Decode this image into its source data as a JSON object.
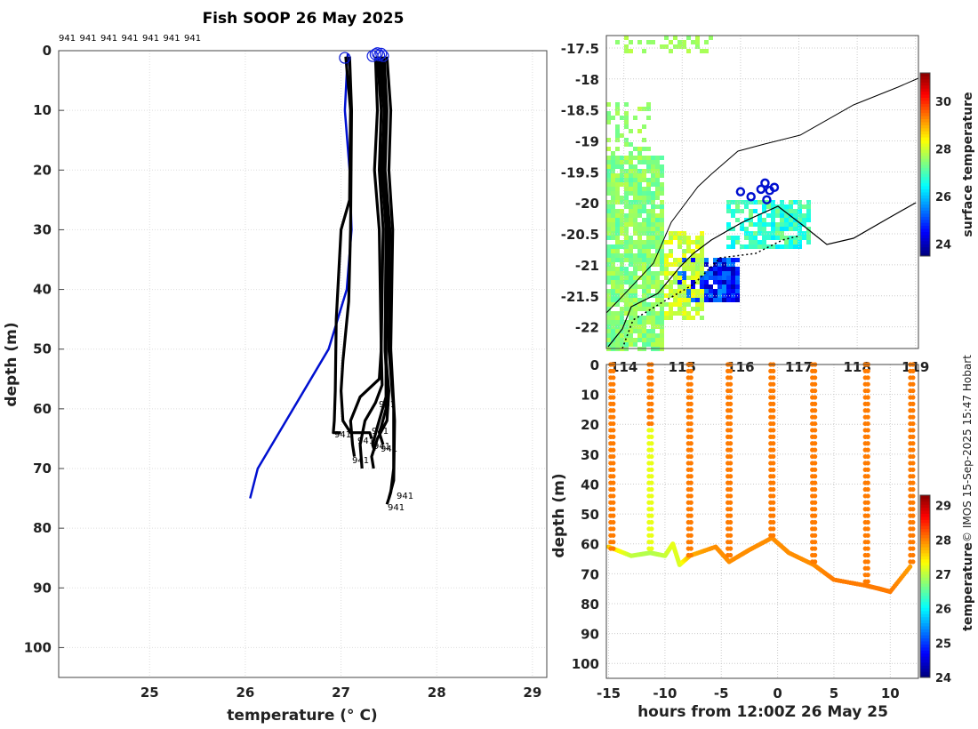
{
  "title": "Fish SOOP 26 May 2025",
  "credit": "© IMOS 15-Sep-2025 15:47 Hobart",
  "chart_data": [
    {
      "type": "line",
      "name": "profiles",
      "xlabel": "temperature (° C)",
      "ylabel": "depth (m)",
      "xlim": [
        24.05,
        29.15
      ],
      "ylim": [
        105,
        0
      ],
      "xticks": [
        "25",
        "26",
        "27",
        "28",
        "29"
      ],
      "yticks": [
        "0",
        "10",
        "20",
        "30",
        "40",
        "50",
        "60",
        "70",
        "80",
        "90",
        "100"
      ],
      "top_labels": [
        "941",
        "941",
        "941",
        "941",
        "941",
        "941",
        "941"
      ],
      "end_labels": [
        "941",
        "941",
        "941",
        "941",
        "941",
        "941",
        "941",
        "941",
        "941"
      ],
      "series": [
        {
          "name": "model",
          "color": "#0010d0",
          "x": [
            27.07,
            27.04,
            27.09,
            27.11,
            27.06,
            26.87,
            26.13,
            26.05
          ],
          "y": [
            0.5,
            10,
            20,
            30,
            40,
            50,
            70,
            75
          ]
        },
        {
          "name": "p1",
          "color": "#000000",
          "x": [
            27.05,
            27.1,
            27.09,
            27.0,
            26.95,
            26.94,
            26.93,
            26.92,
            26.95,
            27.0
          ],
          "y": [
            1,
            10,
            25,
            30,
            45,
            57,
            62,
            64,
            64,
            64
          ]
        },
        {
          "name": "p2",
          "color": "#000000",
          "x": [
            27.09,
            27.11,
            27.1,
            27.08,
            27.02,
            27.0,
            27.02,
            27.1,
            27.2,
            27.3,
            27.32
          ],
          "y": [
            1,
            10,
            30,
            42,
            52,
            57,
            62,
            64,
            64,
            64,
            65
          ]
        },
        {
          "name": "p3",
          "color": "#000000",
          "x": [
            27.36,
            27.38,
            27.35,
            27.4,
            27.42,
            27.4,
            27.2,
            27.1,
            27.12,
            27.14
          ],
          "y": [
            1,
            10,
            20,
            30,
            50,
            55,
            58,
            62,
            66,
            68
          ]
        },
        {
          "name": "p4",
          "color": "#000000",
          "x": [
            27.38,
            27.42,
            27.4,
            27.44,
            27.42,
            27.43,
            27.36,
            27.25,
            27.2,
            27.22
          ],
          "y": [
            1,
            10,
            20,
            30,
            50,
            56,
            59,
            62,
            66,
            70
          ]
        },
        {
          "name": "p5",
          "color": "#000000",
          "x": [
            27.4,
            27.45,
            27.43,
            27.47,
            27.46,
            27.48,
            27.47,
            27.42,
            27.4,
            27.44
          ],
          "y": [
            1,
            10,
            20,
            30,
            50,
            56,
            60,
            63,
            64,
            66
          ]
        },
        {
          "name": "p6",
          "color": "#000000",
          "x": [
            27.41,
            27.46,
            27.42,
            27.48,
            27.46,
            27.5,
            27.48,
            27.38,
            27.32,
            27.34
          ],
          "y": [
            1,
            10,
            20,
            30,
            50,
            57,
            62,
            65,
            68,
            70
          ]
        },
        {
          "name": "p7",
          "color": "#000000",
          "x": [
            27.45,
            27.48,
            27.46,
            27.51,
            27.5,
            27.55,
            27.55,
            27.52,
            27.5
          ],
          "y": [
            1,
            10,
            20,
            30,
            50,
            60,
            70,
            74,
            75
          ]
        },
        {
          "name": "p8",
          "color": "#000000",
          "x": [
            27.48,
            27.52,
            27.5,
            27.54,
            27.52,
            27.56,
            27.55,
            27.5,
            27.48
          ],
          "y": [
            1,
            10,
            20,
            30,
            50,
            62,
            72,
            75,
            76
          ]
        },
        {
          "name": "p9",
          "color": "#000000",
          "x": [
            27.43,
            27.47,
            27.44,
            27.49,
            27.47,
            27.47,
            27.38,
            27.33,
            27.35
          ],
          "y": [
            1,
            10,
            20,
            30,
            50,
            58,
            63,
            66,
            67
          ]
        }
      ],
      "start_markers": [
        {
          "x": 27.04,
          "y": 1.2
        },
        {
          "x": 27.33,
          "y": 0.9
        },
        {
          "x": 27.36,
          "y": 0.6
        },
        {
          "x": 27.38,
          "y": 0.4
        },
        {
          "x": 27.4,
          "y": 0.8
        },
        {
          "x": 27.42,
          "y": 0.5
        },
        {
          "x": 27.44,
          "y": 0.9
        }
      ]
    },
    {
      "type": "heatmap",
      "name": "map",
      "colorbar_label": "surface temperature",
      "colorbar_ticks": [
        "24",
        "26",
        "28",
        "30"
      ],
      "colorbar_range": [
        23.5,
        31.2
      ],
      "xlim": [
        113.7,
        119.05
      ],
      "ylim": [
        -22.35,
        -17.3
      ],
      "xticks": [
        "114",
        "115",
        "116",
        "117",
        "118",
        "119"
      ],
      "yticks": [
        "-17.5",
        "-18",
        "-18.5",
        "-19",
        "-19.5",
        "-20",
        "-20.5",
        "-21",
        "-21.5",
        "-22"
      ],
      "stations": [
        {
          "lon": 116.0,
          "lat": -19.82
        },
        {
          "lon": 116.18,
          "lat": -19.9
        },
        {
          "lon": 116.35,
          "lat": -19.78
        },
        {
          "lon": 116.42,
          "lat": -19.68
        },
        {
          "lon": 116.5,
          "lat": -19.8
        },
        {
          "lon": 116.58,
          "lat": -19.75
        },
        {
          "lon": 116.45,
          "lat": -19.95
        }
      ]
    },
    {
      "type": "scatter",
      "name": "timeseries",
      "xlabel": "hours from 12:00Z 26 May 25",
      "ylabel": "depth (m)",
      "colorbar_label": "temperature",
      "colorbar_ticks": [
        "24",
        "25",
        "26",
        "27",
        "28",
        "29"
      ],
      "colorbar_range": [
        24,
        29.3
      ],
      "xlim": [
        -15.2,
        12.5
      ],
      "ylim": [
        105,
        0
      ],
      "xticks": [
        "-15",
        "-10",
        "-5",
        "0",
        "5",
        "10"
      ],
      "yticks": [
        "0",
        "10",
        "20",
        "30",
        "40",
        "50",
        "60",
        "70",
        "80",
        "90",
        "100"
      ],
      "casts": [
        -14.7,
        -11.3,
        -7.8,
        -4.3,
        -0.5,
        3.2,
        7.9,
        11.9
      ],
      "bottom_t": [
        -15,
        -13,
        -11.3,
        -10,
        -9.3,
        -8.7,
        -7.8,
        -5.5,
        -4.3,
        -2.5,
        -0.5,
        1,
        3.2,
        5,
        7.9,
        9,
        10,
        11.9
      ],
      "bottom_d": [
        61,
        64,
        63,
        64,
        60,
        67,
        64,
        61,
        66,
        62,
        58,
        63,
        67,
        72,
        74,
        75,
        76,
        67
      ],
      "bottom_temp": [
        27.6,
        27.0,
        26.9,
        27.0,
        27.2,
        27.1,
        27.7,
        27.9,
        27.9,
        27.9,
        27.9,
        27.9,
        27.9,
        28.0,
        28.0,
        28.0,
        28.0,
        27.8
      ]
    }
  ]
}
